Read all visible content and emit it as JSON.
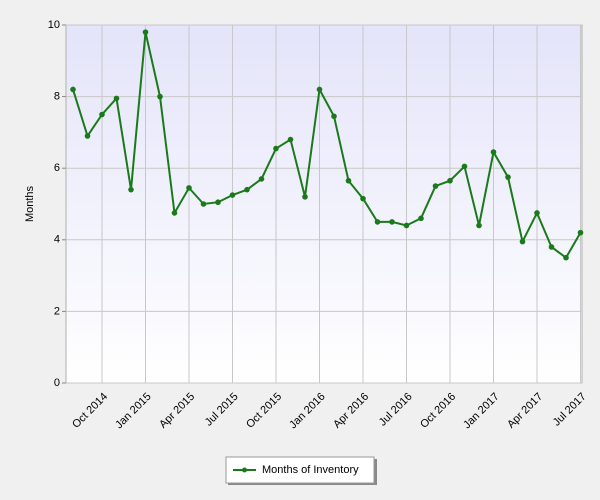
{
  "chart_data": {
    "type": "line",
    "y_label": "Months",
    "categories": [
      null,
      null,
      "Oct 2014",
      null,
      null,
      "Jan 2015",
      null,
      null,
      "Apr 2015",
      null,
      null,
      "Jul 2015",
      null,
      null,
      "Oct 2015",
      null,
      null,
      "Jan 2016",
      null,
      null,
      "Apr 2016",
      null,
      null,
      "Jul 2016",
      null,
      null,
      "Oct 2016",
      null,
      null,
      "Jan 2017",
      null,
      null,
      "Apr 2017",
      null,
      null,
      "Jul 2017"
    ],
    "series": [
      {
        "name": "Months of Inventory",
        "color": "#1a7a1a",
        "values": [
          8.2,
          6.9,
          7.5,
          7.95,
          5.4,
          9.8,
          8.0,
          4.75,
          5.45,
          5.0,
          5.05,
          5.25,
          5.4,
          5.7,
          6.55,
          6.8,
          5.2,
          8.2,
          7.45,
          5.65,
          5.15,
          4.5,
          4.5,
          4.4,
          4.6,
          5.5,
          5.65,
          6.05,
          4.4,
          6.45,
          5.75,
          3.95,
          4.75,
          3.8,
          3.5,
          4.2
        ]
      }
    ],
    "ylim": [
      0,
      10
    ],
    "yticks": [
      0,
      2,
      4,
      6,
      8,
      10
    ],
    "grid": true,
    "legend": "bottom"
  }
}
